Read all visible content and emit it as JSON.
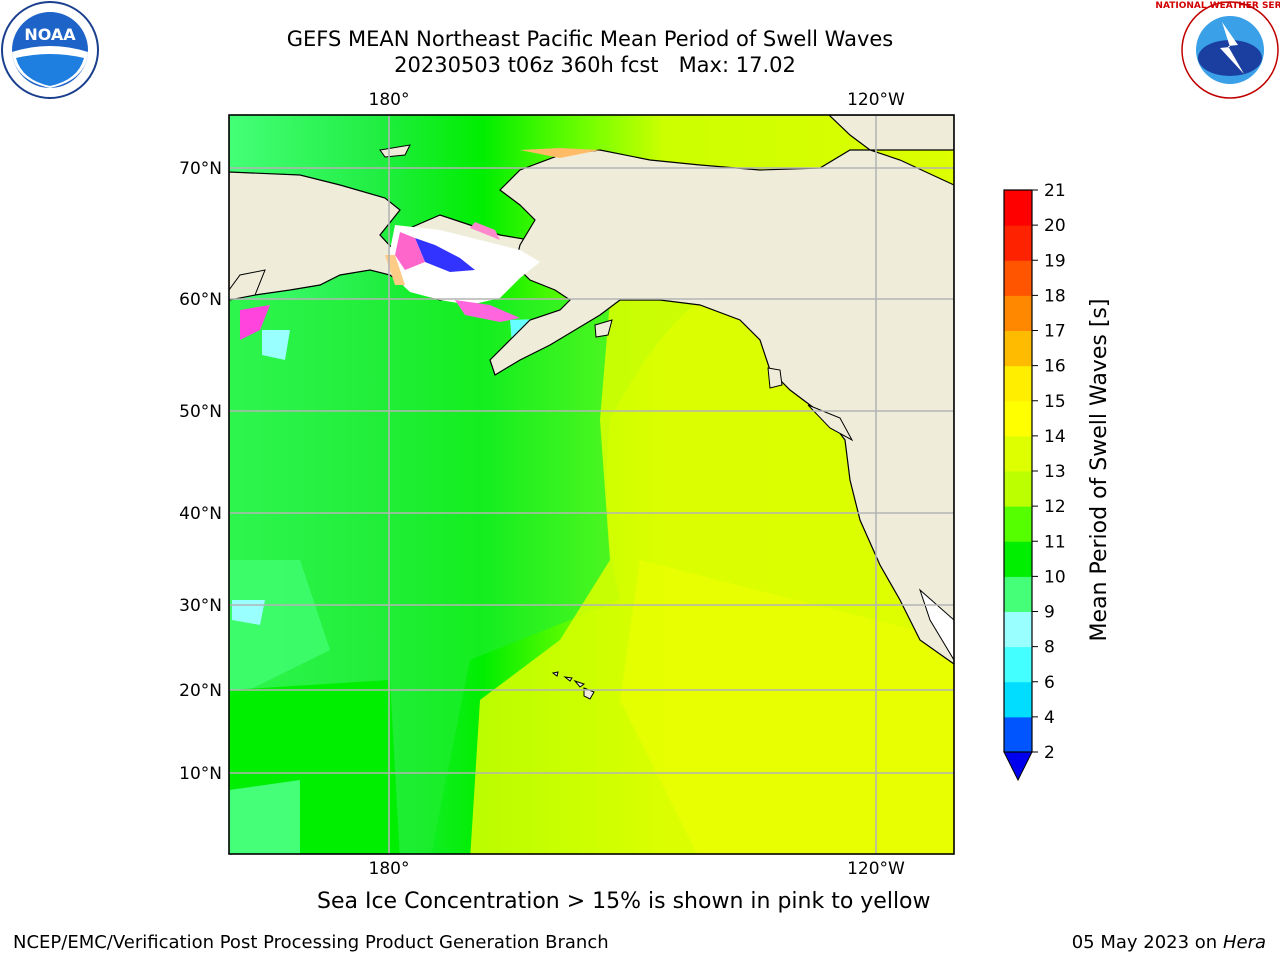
{
  "title": {
    "line1": "GEFS MEAN Northeast Pacific Mean Period of Swell Waves",
    "line2": "20230503 t06z 360h fcst   Max: 17.02"
  },
  "map": {
    "lon_labels_top": [
      "180°",
      "120°W"
    ],
    "lon_labels_bottom": [
      "180°",
      "120°W"
    ],
    "lat_labels": [
      "70°N",
      "60°N",
      "50°N",
      "40°N",
      "30°N",
      "20°N",
      "10°N"
    ]
  },
  "colorbar": {
    "label": "Mean Period of Swell Waves [s]",
    "ticks": [
      "2",
      "4",
      "6",
      "8",
      "9",
      "10",
      "11",
      "12",
      "13",
      "14",
      "15",
      "16",
      "17",
      "18",
      "19",
      "20",
      "21"
    ],
    "colors": [
      "#0055ff",
      "#00ddff",
      "#44ffff",
      "#99ffff",
      "#44ff77",
      "#00ee00",
      "#55ff00",
      "#bbff00",
      "#ddff00",
      "#ffff00",
      "#ffee00",
      "#ffbb00",
      "#ff8800",
      "#ff5500",
      "#ff2200",
      "#ff0000"
    ],
    "under_color": "#0000ee"
  },
  "logos": {
    "left_text": "NOAA",
    "right_text": "NATIONAL WEATHER SERVICE"
  },
  "footer": {
    "ice_note": "Sea Ice Concentration > 15% is shown in pink to yellow",
    "credit": "NCEP/EMC/Verification Post Processing Product Generation Branch",
    "date": "05 May 2023 on",
    "host": "Hera"
  }
}
